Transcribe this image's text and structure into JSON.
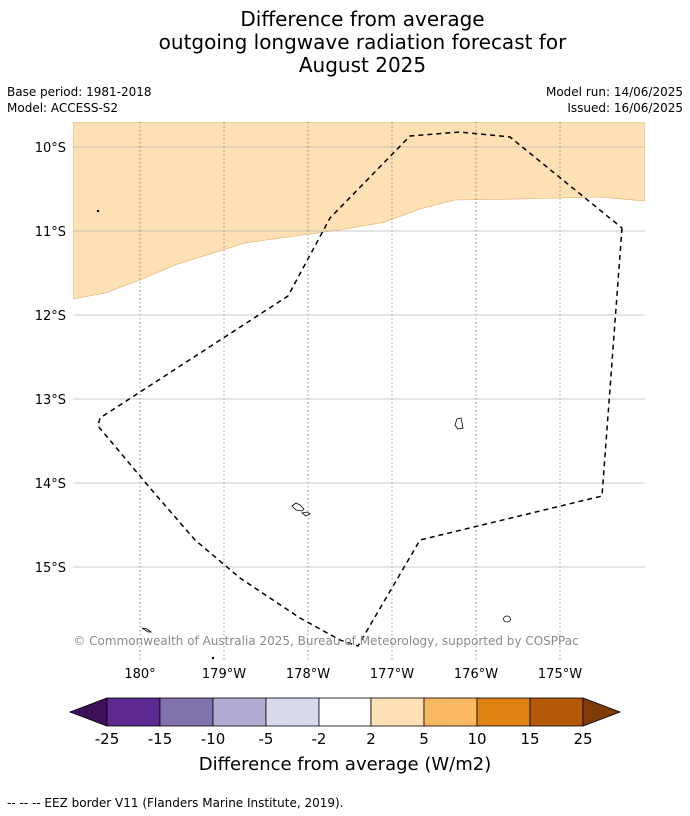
{
  "title": {
    "line1": "Difference from average",
    "line2": "outgoing longwave radiation forecast for",
    "line3": "August 2025"
  },
  "meta": {
    "base_period": "Base period: 1981-2018",
    "model": "Model: ACCESS-S2",
    "model_run": "Model run: 14/06/2025",
    "issued": "Issued: 16/06/2025"
  },
  "map": {
    "lat_labels": [
      "10°S",
      "11°S",
      "12°S",
      "13°S",
      "14°S",
      "15°S"
    ],
    "lon_labels": [
      "180°",
      "179°W",
      "178°W",
      "177°W",
      "176°W",
      "175°W"
    ],
    "copyright": "© Commonwealth of Australia 2025, Bureau of Meteorology, supported by COSPPac",
    "anomaly_fill_color": "#fde0b4"
  },
  "colorbar": {
    "label": "Difference from average (W/m2)",
    "ticks": [
      "-25",
      "-15",
      "-10",
      "-5",
      "-2",
      "2",
      "5",
      "10",
      "15",
      "25"
    ],
    "colors": [
      "#3f0f5a",
      "#5b2990",
      "#8073ad",
      "#b1aad3",
      "#d8d9eb",
      "#ffffff",
      "#fde0b4",
      "#fbb862",
      "#e08213",
      "#b35806",
      "#7f3b08"
    ]
  },
  "footer": {
    "legend": "--  --  -- EEZ border V11 (Flanders Marine Institute, 2019)."
  }
}
